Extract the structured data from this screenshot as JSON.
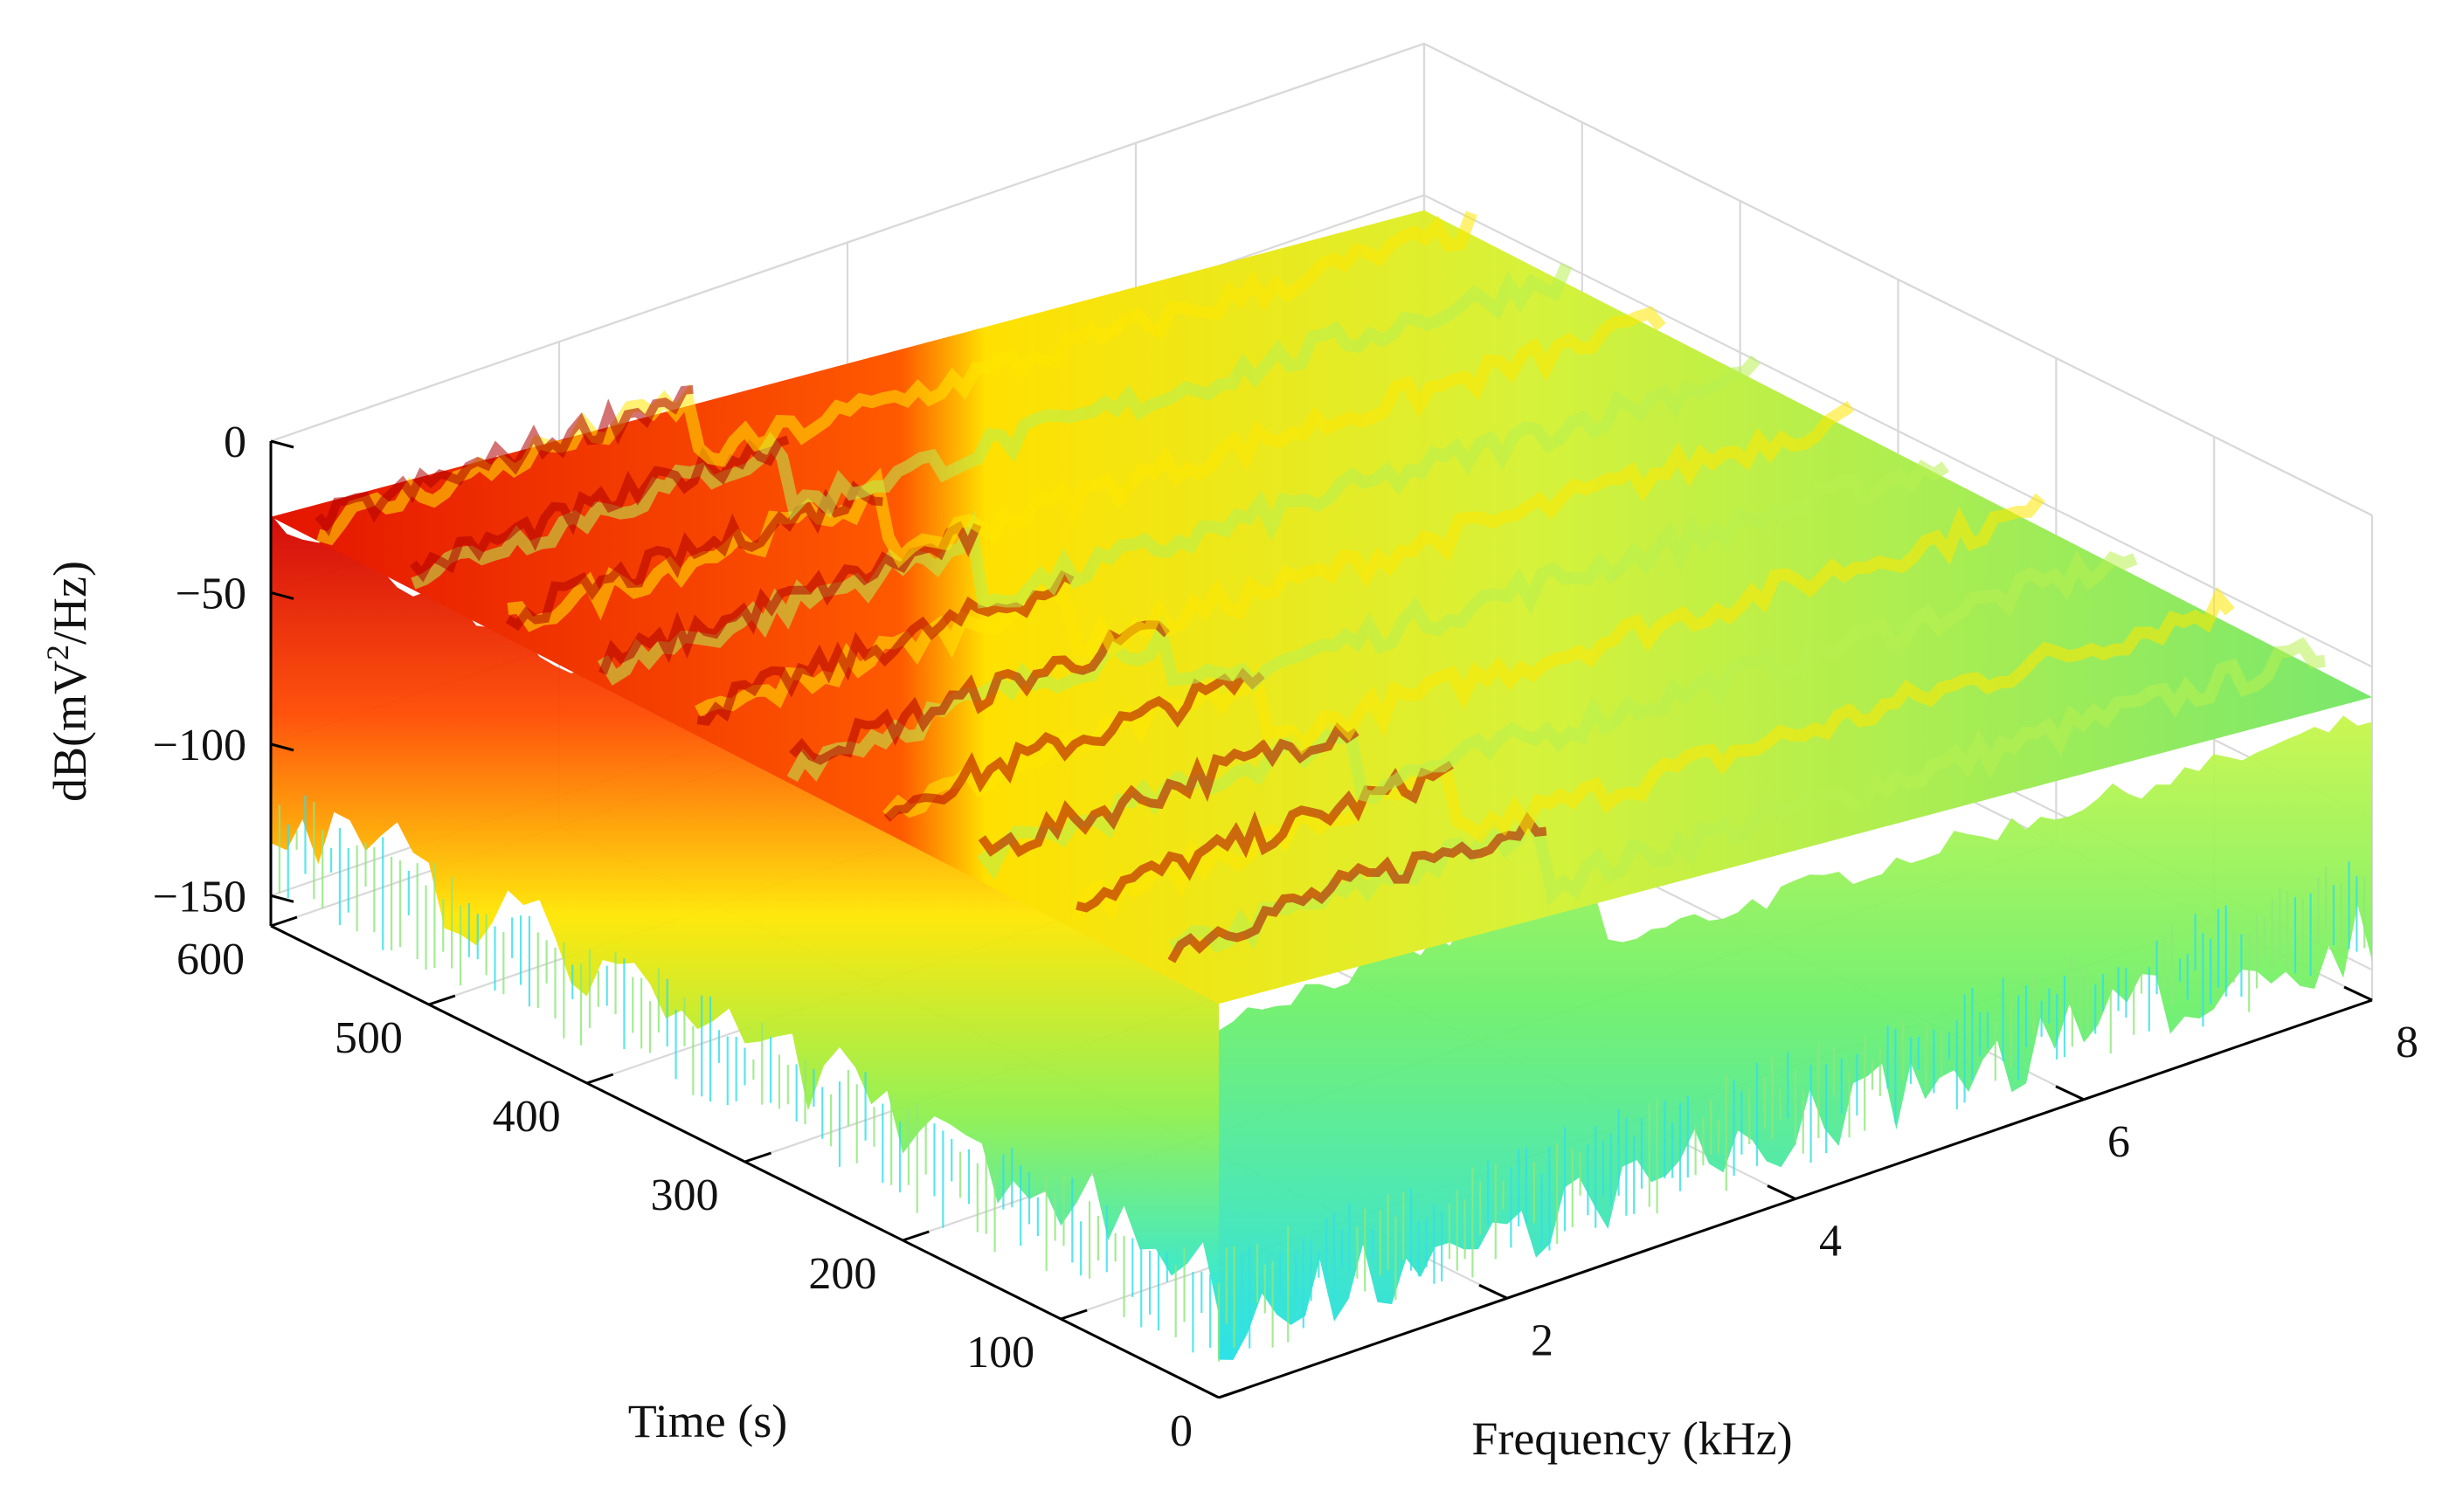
{
  "chart_data": {
    "type": "surface-3d-waterfall",
    "title": "",
    "xlabel": "Frequency (kHz)",
    "ylabel": "Time (s)",
    "zlabel_prefix": "dB(mV",
    "zlabel_sup": "2",
    "zlabel_suffix": "/Hz)",
    "x_ticks": [
      "2",
      "4",
      "6",
      "8"
    ],
    "x_tick_values": [
      2,
      4,
      6,
      8
    ],
    "y_ticks": [
      "0",
      "100",
      "200",
      "300",
      "400",
      "500",
      "600"
    ],
    "y_tick_values": [
      0,
      100,
      200,
      300,
      400,
      500,
      600
    ],
    "z_ticks": [
      "0",
      "−50",
      "−100",
      "−150"
    ],
    "z_tick_values": [
      0,
      -50,
      -100,
      -150
    ],
    "xlim": [
      0,
      8
    ],
    "ylim": [
      0,
      600
    ],
    "zlim": [
      -160,
      0
    ],
    "grid": true,
    "colormap": "jet (cyan → green → yellow → red)",
    "colors": {
      "high": "#c80000",
      "upper": "#ff3a00",
      "mid": "#ffe600",
      "low": "#7ef04e",
      "lowest": "#1ee6e6",
      "grid": "#d9d9d9",
      "axis": "#000000"
    },
    "description_values": {
      "peak_band_frequency_khz": [
        0,
        2.6
      ],
      "peak_band_level_db": -25,
      "background_level_db": -45,
      "noise_floor_db": -150,
      "band_count_over_time": 10
    }
  }
}
